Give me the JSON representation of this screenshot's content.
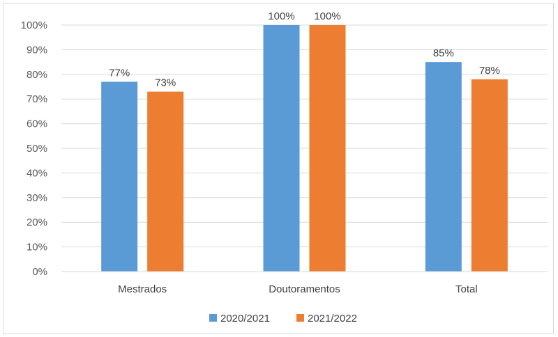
{
  "chart_data": {
    "type": "bar",
    "categories": [
      "Mestrados",
      "Doutoramentos",
      "Total"
    ],
    "series": [
      {
        "name": "2020/2021",
        "values": [
          77,
          100,
          85
        ],
        "labels": [
          "77%",
          "100%",
          "85%"
        ],
        "color": "#5B9BD5"
      },
      {
        "name": "2021/2022",
        "values": [
          73,
          100,
          78
        ],
        "labels": [
          "73%",
          "100%",
          "78%"
        ],
        "color": "#ED7D31"
      }
    ],
    "y_ticks": [
      "0%",
      "10%",
      "20%",
      "30%",
      "40%",
      "50%",
      "60%",
      "70%",
      "80%",
      "90%",
      "100%"
    ],
    "ylim": [
      0,
      100
    ],
    "grid": true,
    "legend": "bottom",
    "title": "",
    "xlabel": "",
    "ylabel": ""
  }
}
